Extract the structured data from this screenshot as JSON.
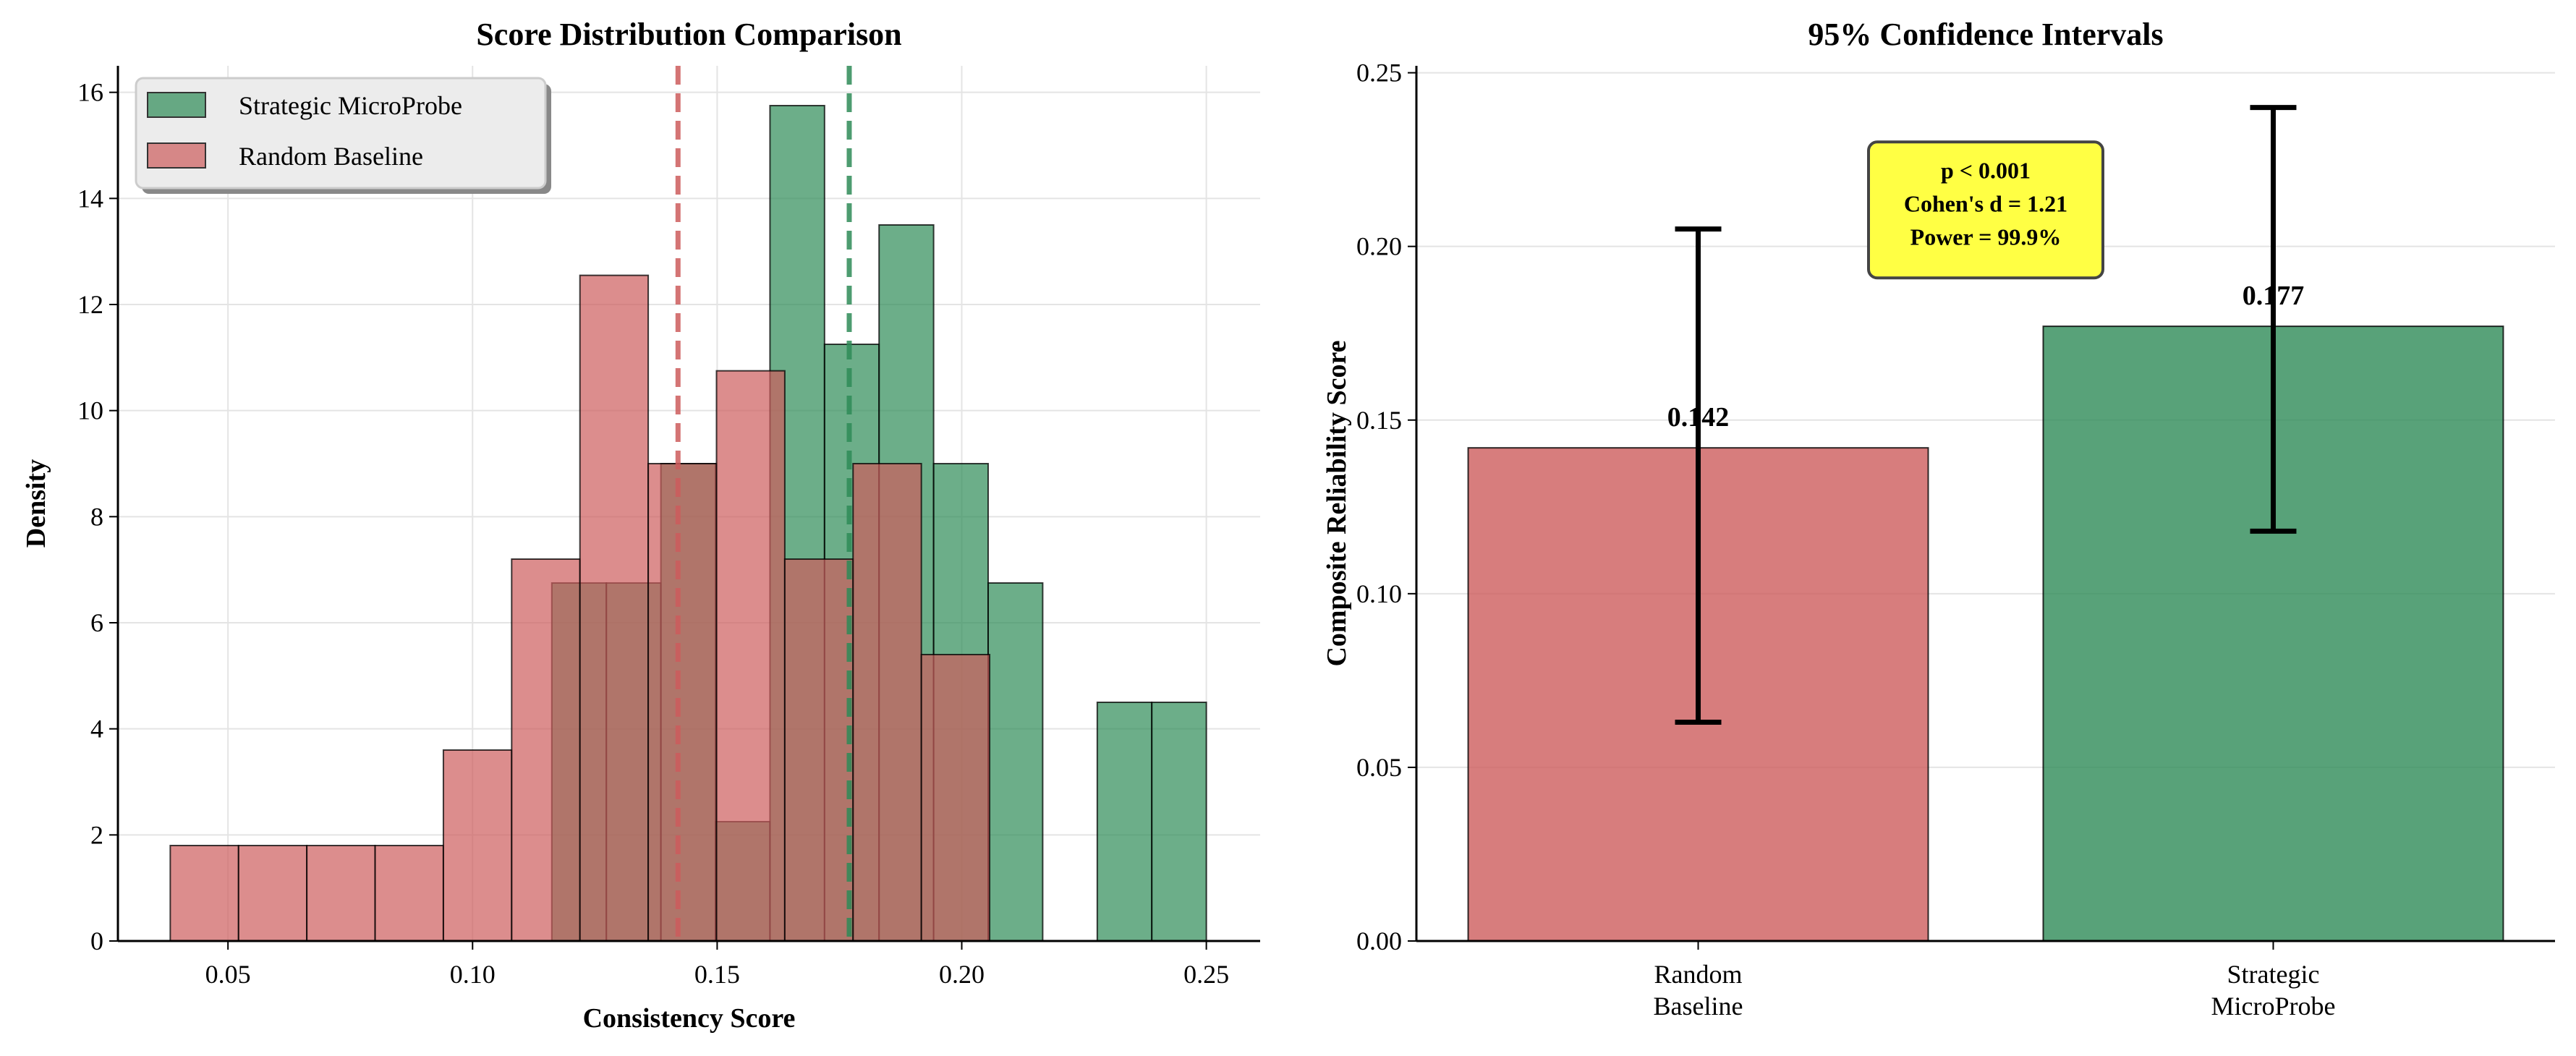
{
  "chart_data": [
    {
      "type": "bar",
      "subtype": "histogram",
      "title": "Score Distribution Comparison",
      "xlabel": "Consistency Score",
      "ylabel": "Density",
      "xlim": [
        0.0275,
        0.261
      ],
      "ylim": [
        0,
        16.5
      ],
      "xticks": [
        "0.05",
        "0.10",
        "0.15",
        "0.20",
        "0.25"
      ],
      "xtick_values": [
        0.05,
        0.1,
        0.15,
        0.2,
        0.25
      ],
      "yticks": [
        "0",
        "2",
        "4",
        "6",
        "8",
        "10",
        "12",
        "14",
        "16"
      ],
      "ytick_values": [
        0,
        2,
        4,
        6,
        8,
        10,
        12,
        14,
        16
      ],
      "grid": true,
      "legend_placement": "top-left",
      "series": [
        {
          "name": "Strategic MicroProbe",
          "color": "#2e8b57",
          "bin_start": 0.1162,
          "bin_end": 0.25,
          "values": [
            6.75,
            6.75,
            9.0,
            2.25,
            15.75,
            11.25,
            13.5,
            9.0,
            6.75,
            0,
            4.5,
            4.5
          ],
          "mean": 0.177
        },
        {
          "name": "Random Baseline",
          "color": "#cd5c5c",
          "bin_start": 0.0382,
          "bin_end": 0.2057,
          "values": [
            1.8,
            1.8,
            1.8,
            1.8,
            3.6,
            7.2,
            12.55,
            9.0,
            10.75,
            7.2,
            9.0,
            5.4
          ],
          "mean": 0.142
        }
      ]
    },
    {
      "type": "bar",
      "title": "95% Confidence Intervals",
      "xlabel": "",
      "ylabel": "Composite Reliability Score",
      "ylim": [
        0,
        0.252
      ],
      "yticks": [
        "0.00",
        "0.05",
        "0.10",
        "0.15",
        "0.20",
        "0.25"
      ],
      "ytick_values": [
        0,
        0.05,
        0.1,
        0.15,
        0.2,
        0.25
      ],
      "grid": true,
      "categories": [
        [
          "Random",
          "Baseline"
        ],
        [
          "Strategic",
          "MicroProbe"
        ]
      ],
      "values": [
        0.142,
        0.177
      ],
      "value_labels": [
        "0.142",
        "0.177"
      ],
      "ci_low": [
        0.063,
        0.118
      ],
      "ci_high": [
        0.205,
        0.24
      ],
      "colors": [
        "#cd5c5c",
        "#2e8b57"
      ],
      "annotation": {
        "lines": [
          "p < 0.001",
          "Cohen's d = 1.21",
          "Power = 99.9%"
        ],
        "background": "#ffff44"
      }
    }
  ]
}
